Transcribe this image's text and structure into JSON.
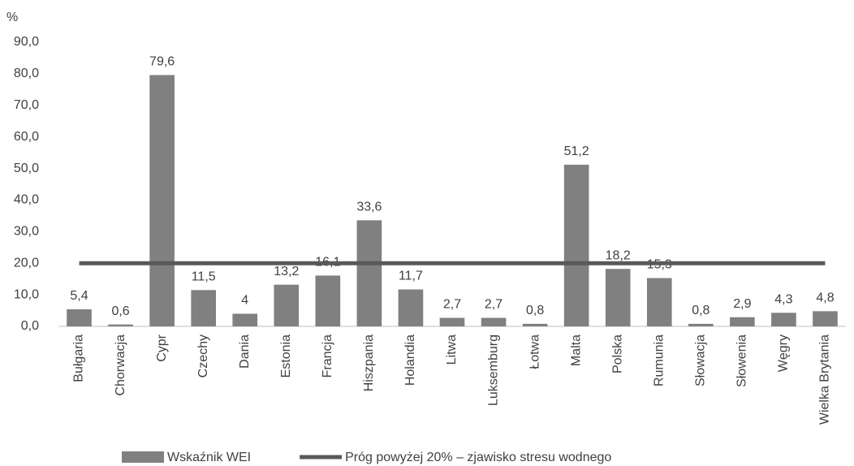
{
  "chart_data": {
    "type": "bar",
    "y_label": "%",
    "categories": [
      "Bułgaria",
      "Chorwacja",
      "Cypr",
      "Czechy",
      "Dania",
      "Estonia",
      "Francja",
      "Hiszpania",
      "Holandia",
      "Litwa",
      "Luksemburg",
      "Łotwa",
      "Malta",
      "Polska",
      "Rumunia",
      "Słowacja",
      "Słowenia",
      "Węgry",
      "Wielka Brytania"
    ],
    "series": [
      {
        "name": "Wskaźnik WEI",
        "type": "bar",
        "color": "#808080",
        "values": [
          5.4,
          0.6,
          79.6,
          11.5,
          4,
          13.2,
          16.1,
          33.6,
          11.7,
          2.7,
          2.7,
          0.8,
          51.2,
          18.2,
          15.3,
          0.8,
          2.9,
          4.3,
          4.8
        ],
        "value_labels": [
          "5,4",
          "0,6",
          "79,6",
          "11,5",
          "4",
          "13,2",
          "16,1",
          "33,6",
          "11,7",
          "2,7",
          "2,7",
          "0,8",
          "51,2",
          "18,2",
          "15,3",
          "0,8",
          "2,9",
          "4,3",
          "4,8"
        ]
      },
      {
        "name": "Próg powyżej 20% – zjawisko stresu wodnego",
        "type": "line",
        "color": "#595959",
        "values": [
          20,
          20,
          20,
          20,
          20,
          20,
          20,
          20,
          20,
          20,
          20,
          20,
          20,
          20,
          20,
          20,
          20,
          20,
          20
        ]
      }
    ],
    "ylim": [
      0,
      90
    ],
    "yticks": [
      {
        "value": 0,
        "label": "0,0"
      },
      {
        "value": 10,
        "label": "10,0"
      },
      {
        "value": 20,
        "label": "20,0"
      },
      {
        "value": 30,
        "label": "30,0"
      },
      {
        "value": 40,
        "label": "40,0"
      },
      {
        "value": 50,
        "label": "50,0"
      },
      {
        "value": 60,
        "label": "60,0"
      },
      {
        "value": 70,
        "label": "70,0"
      },
      {
        "value": 80,
        "label": "80,0"
      },
      {
        "value": 90,
        "label": "90,0"
      }
    ],
    "grid": false,
    "legend": "bottom"
  }
}
